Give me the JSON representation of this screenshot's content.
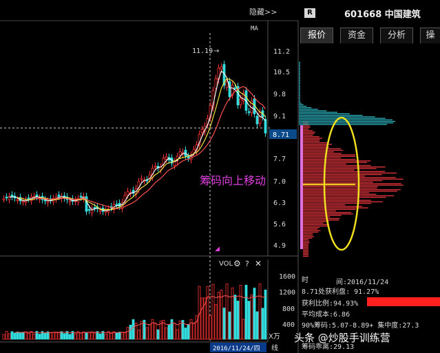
{
  "header": {
    "hide_toggle": "隐藏>>",
    "badge": "R",
    "stock_title": "601668 中国建筑",
    "ma_label": "MA"
  },
  "tabs": [
    {
      "label": "报价",
      "active": true
    },
    {
      "label": "资金",
      "active": false
    },
    {
      "label": "分析",
      "active": false
    },
    {
      "label": "操",
      "active": false
    }
  ],
  "chart": {
    "peak_label": "11.19",
    "annotation": "筹码向上移动",
    "price_marker_label": "8.71",
    "price_axis": [
      "11.2",
      "10.5",
      "9.8",
      "9.1",
      "7.7",
      "7.0",
      "6.3",
      "5.6",
      "4.9"
    ],
    "volume": {
      "label": "VOL",
      "axis": [
        "1600",
        "1200",
        "800",
        "400"
      ],
      "unit": "X万",
      "date_box": "2016/11/24/四",
      "last_label": "线"
    },
    "colors": {
      "up": "#ff3333",
      "down": "#33dddd",
      "ma_fast": "#f4f4f4",
      "ma_mid": "#f2e040",
      "ma_slow": "#ff5050"
    }
  },
  "chip_panel": {
    "date_label": "时",
    "date_label2": "间:2016/11/24",
    "profit_disk": "8.71处获利盘: 91.27%",
    "profit_ratio": "获利比例:94.93%",
    "avg_cost": "平均成本:6.86",
    "chip90": "90%筹码:5.07-8.89+ 集中度:27.3",
    "chip70": "筹码乖离:29.13",
    "colors": {
      "chip": "#d8333a",
      "chip_recent": "#2ec4cf",
      "ellipse": "#f0e020",
      "cost_line": "#f0c020",
      "ratio_bar": "#ff2020"
    }
  },
  "watermark": "头条 @炒股手训练营"
}
